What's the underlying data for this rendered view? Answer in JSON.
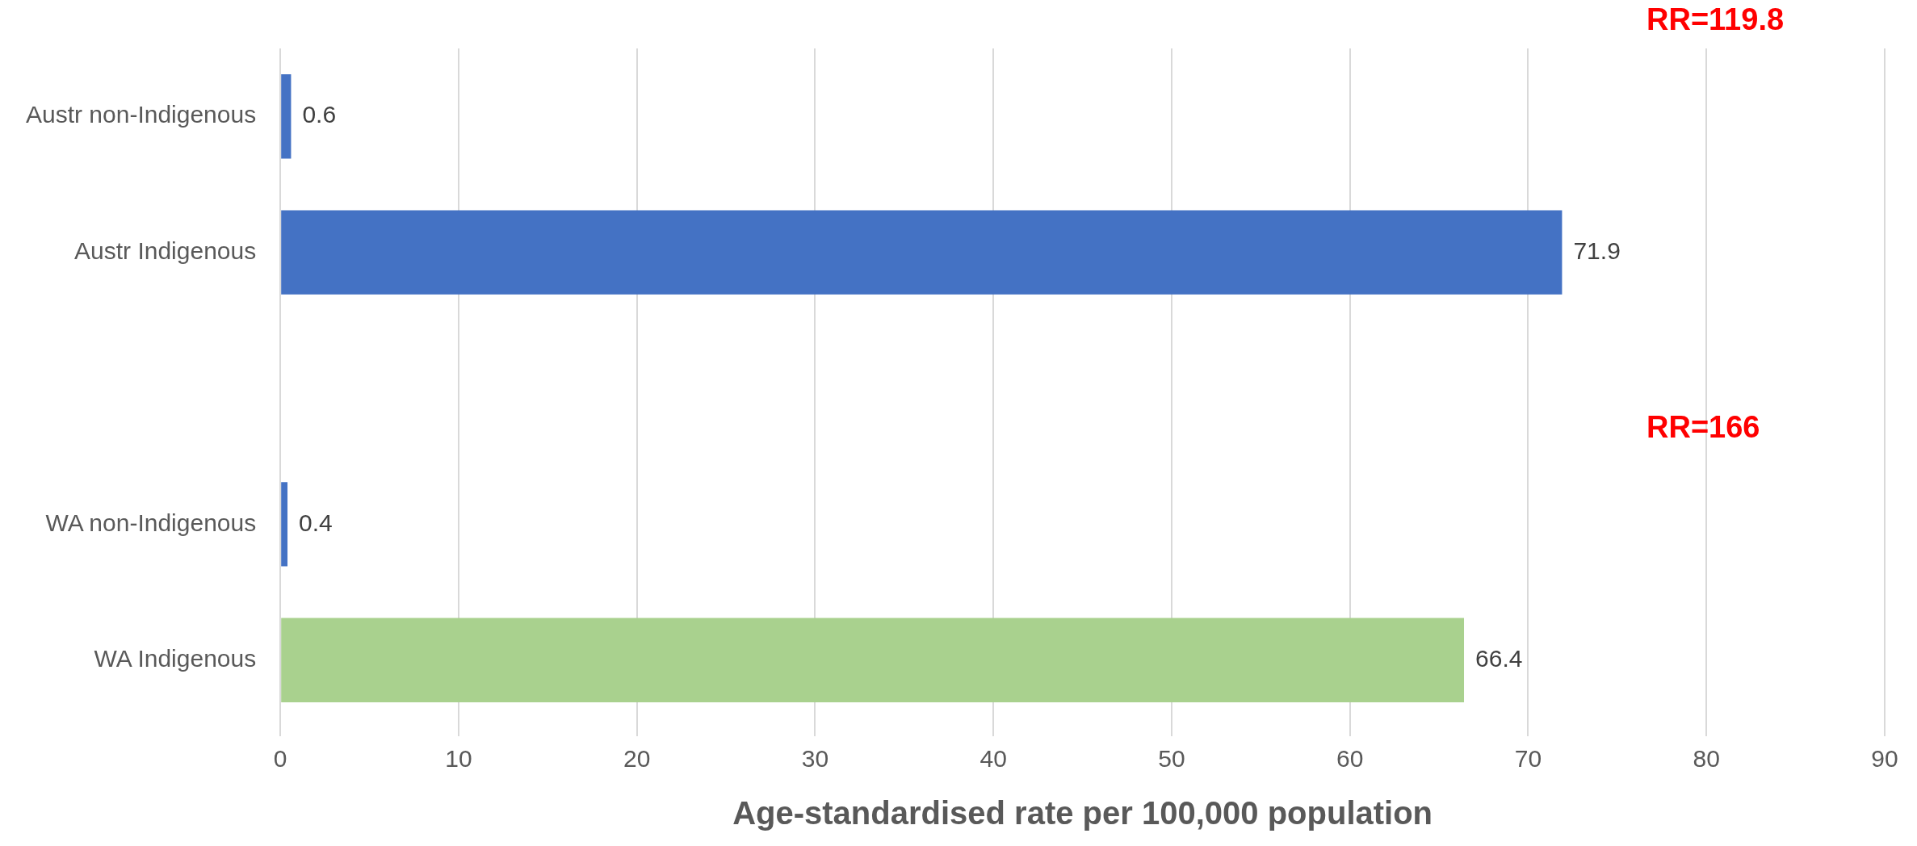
{
  "chart_data": {
    "type": "bar",
    "orientation": "horizontal",
    "categories": [
      "Austr non-Indigenous",
      "Austr Indigenous",
      null,
      "WA non-Indigenous",
      "WA Indigenous"
    ],
    "values": [
      0.6,
      71.9,
      null,
      0.4,
      66.4
    ],
    "colors": [
      "#4472c4",
      "#4472c4",
      "#4472c4",
      "#4472c4",
      "#a9d18e"
    ],
    "xlim": [
      0,
      90
    ],
    "xticks": [
      0,
      10,
      20,
      30,
      40,
      50,
      60,
      70,
      80,
      90
    ],
    "xlabel": "Age-standardised rate per 100,000 population",
    "annotations": [
      "RR=119.8",
      "RR=166"
    ],
    "data_labels": true,
    "grid": "x",
    "legend": false
  }
}
